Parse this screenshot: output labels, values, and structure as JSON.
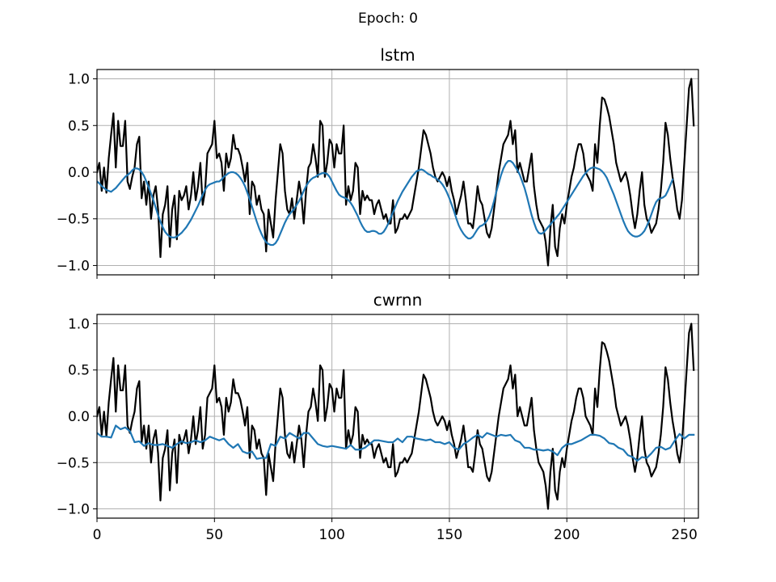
{
  "figure": {
    "suptitle": "Epoch: 0",
    "colors": {
      "target": "#000000",
      "prediction": "#1f77b4",
      "grid": "#b0b0b0"
    }
  },
  "chart_data": [
    {
      "type": "line",
      "title": "lstm",
      "xlabel": "",
      "ylabel": "",
      "xlim": [
        0,
        256
      ],
      "ylim": [
        -1.1,
        1.1
      ],
      "xticks": [
        0,
        50,
        100,
        150,
        200,
        250
      ],
      "yticks": [
        -1.0,
        -0.5,
        0.0,
        0.5,
        1.0
      ],
      "xtick_labels_visible": false,
      "grid": true,
      "series": [
        {
          "role": "target",
          "color": "#000000",
          "x_start": 0,
          "x_step": 1,
          "values": [
            0.0,
            0.1,
            -0.2,
            0.05,
            -0.22,
            0.15,
            0.4,
            0.63,
            0.05,
            0.55,
            0.28,
            0.28,
            0.55,
            -0.1,
            -0.18,
            -0.05,
            0.05,
            0.3,
            0.38,
            -0.28,
            -0.1,
            -0.35,
            -0.1,
            -0.5,
            -0.25,
            -0.15,
            -0.4,
            -0.91,
            -0.45,
            -0.35,
            -0.15,
            -0.8,
            -0.4,
            -0.25,
            -0.72,
            -0.2,
            -0.3,
            -0.25,
            -0.15,
            -0.4,
            -0.25,
            0.0,
            -0.3,
            -0.15,
            0.1,
            -0.35,
            -0.2,
            0.2,
            0.25,
            0.3,
            0.55,
            0.15,
            0.2,
            0.1,
            -0.2,
            0.2,
            0.05,
            0.15,
            0.4,
            0.25,
            0.25,
            0.18,
            0.05,
            -0.1,
            0.1,
            -0.45,
            -0.1,
            -0.15,
            -0.35,
            -0.25,
            -0.4,
            -0.45,
            -0.85,
            -0.4,
            -0.55,
            -0.7,
            -0.3,
            0.0,
            0.3,
            0.2,
            -0.2,
            -0.4,
            -0.45,
            -0.28,
            -0.5,
            -0.3,
            -0.1,
            -0.25,
            -0.55,
            -0.2,
            0.05,
            0.1,
            0.3,
            0.15,
            -0.05,
            0.55,
            0.5,
            -0.05,
            0.1,
            0.35,
            0.3,
            0.05,
            0.3,
            0.2,
            0.2,
            0.5,
            -0.35,
            -0.15,
            -0.3,
            -0.2,
            0.1,
            0.05,
            -0.45,
            -0.2,
            -0.3,
            -0.25,
            -0.3,
            -0.3,
            -0.45,
            -0.35,
            -0.3,
            -0.4,
            -0.5,
            -0.45,
            -0.55,
            -0.55,
            -0.3,
            -0.65,
            -0.6,
            -0.5,
            -0.5,
            -0.45,
            -0.5,
            -0.45,
            -0.4,
            -0.25,
            -0.1,
            0.05,
            0.25,
            0.45,
            0.4,
            0.3,
            0.2,
            0.05,
            -0.05,
            -0.1,
            -0.05,
            0.0,
            -0.05,
            -0.15,
            -0.05,
            -0.2,
            -0.3,
            -0.45,
            -0.35,
            -0.25,
            -0.1,
            -0.3,
            -0.55,
            -0.55,
            -0.6,
            -0.4,
            -0.15,
            -0.3,
            -0.35,
            -0.5,
            -0.65,
            -0.7,
            -0.6,
            -0.4,
            -0.2,
            0.0,
            0.15,
            0.3,
            0.35,
            0.4,
            0.55,
            0.3,
            0.45,
            0.0,
            0.1,
            0.0,
            -0.1,
            -0.1,
            0.05,
            0.2,
            -0.15,
            -0.35,
            -0.5,
            -0.55,
            -0.6,
            -0.75,
            -1.0,
            -0.6,
            -0.35,
            -0.8,
            -0.9,
            -0.6,
            -0.45,
            -0.55,
            -0.35,
            -0.2,
            -0.05,
            0.05,
            0.2,
            0.3,
            0.3,
            0.2,
            0.0,
            -0.05,
            -0.1,
            -0.2,
            0.3,
            0.1,
            0.5,
            0.8,
            0.78,
            0.7,
            0.6,
            0.45,
            0.3,
            0.1,
            0.0,
            -0.1,
            -0.05,
            0.0,
            -0.1,
            -0.25,
            -0.45,
            -0.6,
            -0.45,
            -0.2,
            0.0,
            -0.35,
            -0.5,
            -0.55,
            -0.65,
            -0.6,
            -0.55,
            -0.4,
            -0.2,
            0.1,
            0.53,
            0.4,
            0.15,
            -0.05,
            -0.2,
            -0.4,
            -0.5,
            -0.3,
            0.1,
            0.5,
            0.9,
            1.0,
            0.5
          ]
        },
        {
          "role": "prediction",
          "color": "#1f77b4",
          "x_start": 0,
          "x_step": 1,
          "values": [
            -0.1,
            -0.12,
            -0.15,
            -0.17,
            -0.19,
            -0.2,
            -0.21,
            -0.19,
            -0.17,
            -0.14,
            -0.11,
            -0.08,
            -0.05,
            -0.03,
            -0.01,
            0.02,
            0.04,
            0.04,
            0.03,
            0.0,
            -0.04,
            -0.1,
            -0.16,
            -0.23,
            -0.3,
            -0.38,
            -0.46,
            -0.53,
            -0.59,
            -0.64,
            -0.67,
            -0.69,
            -0.7,
            -0.7,
            -0.69,
            -0.67,
            -0.65,
            -0.62,
            -0.59,
            -0.55,
            -0.51,
            -0.46,
            -0.41,
            -0.36,
            -0.3,
            -0.24,
            -0.19,
            -0.15,
            -0.13,
            -0.12,
            -0.11,
            -0.1,
            -0.1,
            -0.08,
            -0.05,
            -0.03,
            -0.01,
            0.0,
            0.0,
            -0.01,
            -0.03,
            -0.06,
            -0.1,
            -0.15,
            -0.22,
            -0.29,
            -0.37,
            -0.45,
            -0.53,
            -0.6,
            -0.66,
            -0.71,
            -0.75,
            -0.77,
            -0.78,
            -0.78,
            -0.76,
            -0.72,
            -0.66,
            -0.6,
            -0.54,
            -0.49,
            -0.45,
            -0.42,
            -0.39,
            -0.35,
            -0.31,
            -0.26,
            -0.2,
            -0.15,
            -0.11,
            -0.08,
            -0.06,
            -0.05,
            -0.03,
            -0.02,
            -0.01,
            -0.01,
            -0.02,
            -0.05,
            -0.1,
            -0.15,
            -0.2,
            -0.24,
            -0.26,
            -0.27,
            -0.28,
            -0.3,
            -0.33,
            -0.37,
            -0.42,
            -0.47,
            -0.53,
            -0.58,
            -0.62,
            -0.64,
            -0.64,
            -0.63,
            -0.63,
            -0.64,
            -0.66,
            -0.66,
            -0.64,
            -0.6,
            -0.55,
            -0.49,
            -0.43,
            -0.37,
            -0.31,
            -0.26,
            -0.21,
            -0.17,
            -0.13,
            -0.09,
            -0.05,
            -0.02,
            0.01,
            0.02,
            0.03,
            0.02,
            0.0,
            -0.02,
            -0.03,
            -0.05,
            -0.06,
            -0.08,
            -0.1,
            -0.13,
            -0.17,
            -0.22,
            -0.28,
            -0.35,
            -0.42,
            -0.5,
            -0.57,
            -0.62,
            -0.66,
            -0.69,
            -0.71,
            -0.71,
            -0.69,
            -0.65,
            -0.61,
            -0.58,
            -0.57,
            -0.55,
            -0.52,
            -0.47,
            -0.4,
            -0.31,
            -0.21,
            -0.12,
            -0.03,
            0.04,
            0.09,
            0.12,
            0.12,
            0.1,
            0.06,
            0.02,
            -0.03,
            -0.1,
            -0.17,
            -0.26,
            -0.36,
            -0.46,
            -0.54,
            -0.61,
            -0.65,
            -0.66,
            -0.65,
            -0.62,
            -0.59,
            -0.56,
            -0.53,
            -0.5,
            -0.47,
            -0.44,
            -0.4,
            -0.36,
            -0.32,
            -0.28,
            -0.24,
            -0.2,
            -0.16,
            -0.12,
            -0.08,
            -0.04,
            -0.01,
            0.02,
            0.04,
            0.05,
            0.05,
            0.04,
            0.03,
            0.01,
            -0.02,
            -0.06,
            -0.12,
            -0.18,
            -0.24,
            -0.31,
            -0.38,
            -0.45,
            -0.52,
            -0.58,
            -0.63,
            -0.66,
            -0.68,
            -0.69,
            -0.69,
            -0.68,
            -0.66,
            -0.63,
            -0.58,
            -0.52,
            -0.45,
            -0.38,
            -0.32,
            -0.29,
            -0.28,
            -0.27,
            -0.25,
            -0.2,
            -0.14,
            -0.08
          ]
        }
      ]
    },
    {
      "type": "line",
      "title": "cwrnn",
      "xlabel": "",
      "ylabel": "",
      "xlim": [
        0,
        256
      ],
      "ylim": [
        -1.1,
        1.1
      ],
      "xticks": [
        0,
        50,
        100,
        150,
        200,
        250
      ],
      "yticks": [
        -1.0,
        -0.5,
        0.0,
        0.5,
        1.0
      ],
      "xtick_labels_visible": true,
      "grid": true,
      "series": [
        {
          "role": "target",
          "color": "#000000",
          "x_start": 0,
          "x_step": 1,
          "values": [
            0.0,
            0.1,
            -0.2,
            0.05,
            -0.22,
            0.15,
            0.4,
            0.63,
            0.05,
            0.55,
            0.28,
            0.28,
            0.55,
            -0.1,
            -0.18,
            -0.05,
            0.05,
            0.3,
            0.38,
            -0.28,
            -0.1,
            -0.35,
            -0.1,
            -0.5,
            -0.25,
            -0.15,
            -0.4,
            -0.91,
            -0.45,
            -0.35,
            -0.15,
            -0.8,
            -0.4,
            -0.25,
            -0.72,
            -0.2,
            -0.3,
            -0.25,
            -0.15,
            -0.4,
            -0.25,
            0.0,
            -0.3,
            -0.15,
            0.1,
            -0.35,
            -0.2,
            0.2,
            0.25,
            0.3,
            0.55,
            0.15,
            0.2,
            0.1,
            -0.2,
            0.2,
            0.05,
            0.15,
            0.4,
            0.25,
            0.25,
            0.18,
            0.05,
            -0.1,
            0.1,
            -0.45,
            -0.1,
            -0.15,
            -0.35,
            -0.25,
            -0.4,
            -0.45,
            -0.85,
            -0.4,
            -0.55,
            -0.7,
            -0.3,
            0.0,
            0.3,
            0.2,
            -0.2,
            -0.4,
            -0.45,
            -0.28,
            -0.5,
            -0.3,
            -0.1,
            -0.25,
            -0.55,
            -0.2,
            0.05,
            0.1,
            0.3,
            0.15,
            -0.05,
            0.55,
            0.5,
            -0.05,
            0.1,
            0.35,
            0.3,
            0.05,
            0.3,
            0.2,
            0.2,
            0.5,
            -0.35,
            -0.15,
            -0.3,
            -0.2,
            0.1,
            0.05,
            -0.45,
            -0.2,
            -0.3,
            -0.25,
            -0.3,
            -0.3,
            -0.45,
            -0.35,
            -0.3,
            -0.4,
            -0.5,
            -0.45,
            -0.55,
            -0.55,
            -0.3,
            -0.65,
            -0.6,
            -0.5,
            -0.5,
            -0.45,
            -0.5,
            -0.45,
            -0.4,
            -0.25,
            -0.1,
            0.05,
            0.25,
            0.45,
            0.4,
            0.3,
            0.2,
            0.05,
            -0.05,
            -0.1,
            -0.05,
            0.0,
            -0.05,
            -0.15,
            -0.05,
            -0.2,
            -0.3,
            -0.45,
            -0.35,
            -0.25,
            -0.1,
            -0.3,
            -0.55,
            -0.55,
            -0.6,
            -0.4,
            -0.15,
            -0.3,
            -0.35,
            -0.5,
            -0.65,
            -0.7,
            -0.6,
            -0.4,
            -0.2,
            0.0,
            0.15,
            0.3,
            0.35,
            0.4,
            0.55,
            0.3,
            0.45,
            0.0,
            0.1,
            0.0,
            -0.1,
            -0.1,
            0.05,
            0.2,
            -0.15,
            -0.35,
            -0.5,
            -0.55,
            -0.6,
            -0.75,
            -1.0,
            -0.6,
            -0.35,
            -0.8,
            -0.9,
            -0.6,
            -0.45,
            -0.55,
            -0.35,
            -0.2,
            -0.05,
            0.05,
            0.2,
            0.3,
            0.3,
            0.2,
            0.0,
            -0.05,
            -0.1,
            -0.2,
            0.3,
            0.1,
            0.5,
            0.8,
            0.78,
            0.7,
            0.6,
            0.45,
            0.3,
            0.1,
            0.0,
            -0.1,
            -0.05,
            0.0,
            -0.1,
            -0.25,
            -0.45,
            -0.6,
            -0.45,
            -0.2,
            0.0,
            -0.35,
            -0.5,
            -0.55,
            -0.65,
            -0.6,
            -0.55,
            -0.4,
            -0.2,
            0.1,
            0.53,
            0.4,
            0.15,
            -0.05,
            -0.2,
            -0.4,
            -0.5,
            -0.3,
            0.1,
            0.5,
            0.9,
            1.0,
            0.5
          ]
        },
        {
          "role": "prediction",
          "color": "#1f77b4",
          "x_start": 0,
          "x_step": 2,
          "values": [
            -0.18,
            -0.22,
            -0.22,
            -0.23,
            -0.1,
            -0.14,
            -0.12,
            -0.16,
            -0.28,
            -0.27,
            -0.32,
            -0.29,
            -0.31,
            -0.31,
            -0.3,
            -0.32,
            -0.34,
            -0.3,
            -0.27,
            -0.29,
            -0.28,
            -0.26,
            -0.28,
            -0.26,
            -0.22,
            -0.24,
            -0.26,
            -0.24,
            -0.3,
            -0.34,
            -0.3,
            -0.38,
            -0.4,
            -0.38,
            -0.46,
            -0.45,
            -0.45,
            -0.3,
            -0.32,
            -0.22,
            -0.24,
            -0.18,
            -0.21,
            -0.24,
            -0.18,
            -0.18,
            -0.24,
            -0.3,
            -0.32,
            -0.33,
            -0.32,
            -0.33,
            -0.34,
            -0.35,
            -0.31,
            -0.36,
            -0.36,
            -0.34,
            -0.3,
            -0.26,
            -0.26,
            -0.27,
            -0.28,
            -0.28,
            -0.24,
            -0.28,
            -0.22,
            -0.22,
            -0.24,
            -0.25,
            -0.26,
            -0.25,
            -0.28,
            -0.28,
            -0.3,
            -0.28,
            -0.34,
            -0.36,
            -0.3,
            -0.27,
            -0.23,
            -0.2,
            -0.23,
            -0.18,
            -0.2,
            -0.22,
            -0.2,
            -0.21,
            -0.2,
            -0.26,
            -0.28,
            -0.34,
            -0.34,
            -0.36,
            -0.36,
            -0.37,
            -0.36,
            -0.38,
            -0.42,
            -0.34,
            -0.3,
            -0.3,
            -0.28,
            -0.26,
            -0.23,
            -0.2,
            -0.2,
            -0.21,
            -0.24,
            -0.29,
            -0.3,
            -0.34,
            -0.36,
            -0.42,
            -0.44,
            -0.48,
            -0.44,
            -0.45,
            -0.4,
            -0.34,
            -0.33,
            -0.36,
            -0.34,
            -0.26,
            -0.19,
            -0.24,
            -0.2,
            -0.2
          ]
        }
      ]
    }
  ]
}
